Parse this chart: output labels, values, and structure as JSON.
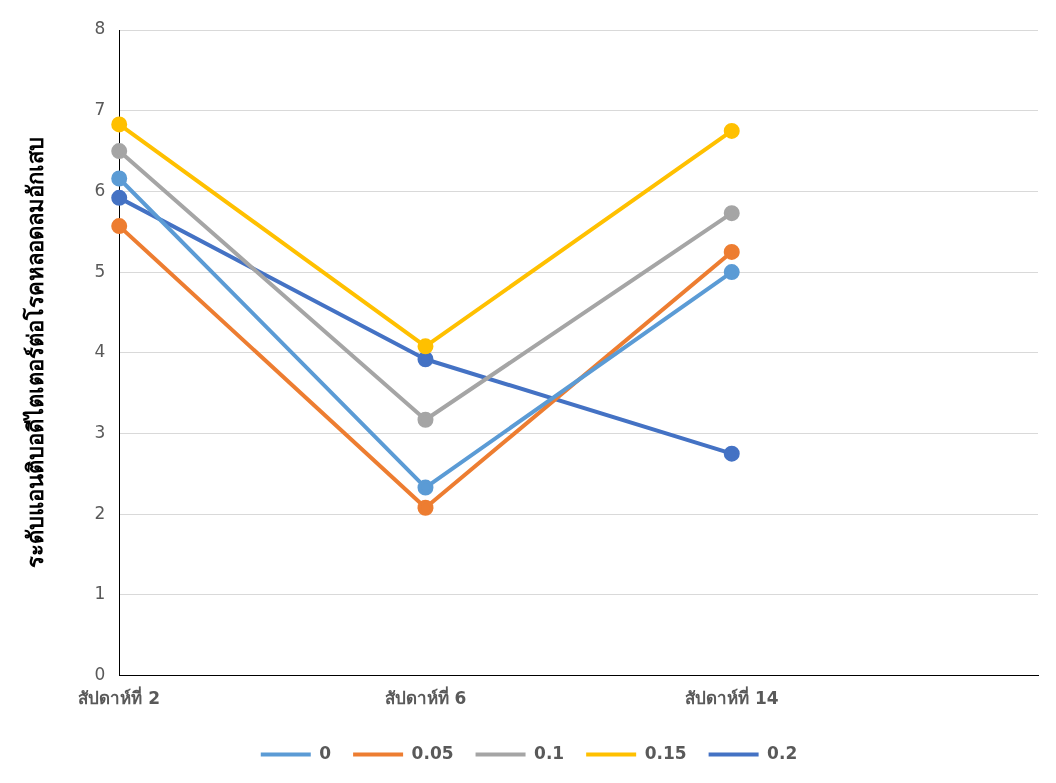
{
  "chart_data": {
    "type": "line",
    "ylabel": "ระดับแอนติบอดีไตเตอร์ต่อโรคหลอดลมอักเสบ",
    "categories": [
      "สัปดาห์ที่ 2",
      "สัปดาห์ที่ 6",
      "สัปดาห์ที่ 14",
      null
    ],
    "series": [
      {
        "name": "0",
        "color": "#5b9bd5",
        "values": [
          6.16,
          2.33,
          5.0,
          null
        ]
      },
      {
        "name": "0.05",
        "color": "#ed7d31",
        "values": [
          5.57,
          2.08,
          5.25,
          null
        ]
      },
      {
        "name": "0.1",
        "color": "#a5a5a5",
        "values": [
          6.5,
          3.17,
          5.73,
          null
        ]
      },
      {
        "name": "0.15",
        "color": "#ffc000",
        "values": [
          6.83,
          4.08,
          6.75,
          null
        ]
      },
      {
        "name": "0.2",
        "color": "#4472c4",
        "values": [
          5.92,
          3.92,
          2.75,
          null
        ]
      }
    ],
    "ylim": [
      0,
      8
    ],
    "yticks": [
      0,
      1,
      2,
      3,
      4,
      5,
      6,
      7,
      8
    ],
    "grid": "y",
    "legend": "bottom",
    "marker": "circle",
    "line_style": "solid"
  }
}
